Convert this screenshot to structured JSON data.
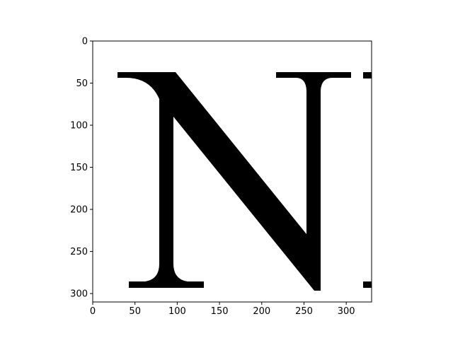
{
  "image_axes": {
    "x_range": [
      0,
      330
    ],
    "y_range": [
      0,
      310
    ],
    "y_inverted": true,
    "x_ticks": [
      0,
      50,
      100,
      150,
      200,
      250,
      300
    ],
    "y_ticks": [
      0,
      50,
      100,
      150,
      200,
      250,
      300
    ],
    "x_tick_labels": [
      "0",
      "50",
      "100",
      "150",
      "200",
      "250",
      "300"
    ],
    "y_tick_labels": [
      "0",
      "50",
      "100",
      "150",
      "200",
      "250",
      "300"
    ]
  },
  "image_content": {
    "subject": "black serif capital letter N on white background, cropped at right edge",
    "glyph_color": "#000000",
    "background_color": "#ffffff"
  }
}
